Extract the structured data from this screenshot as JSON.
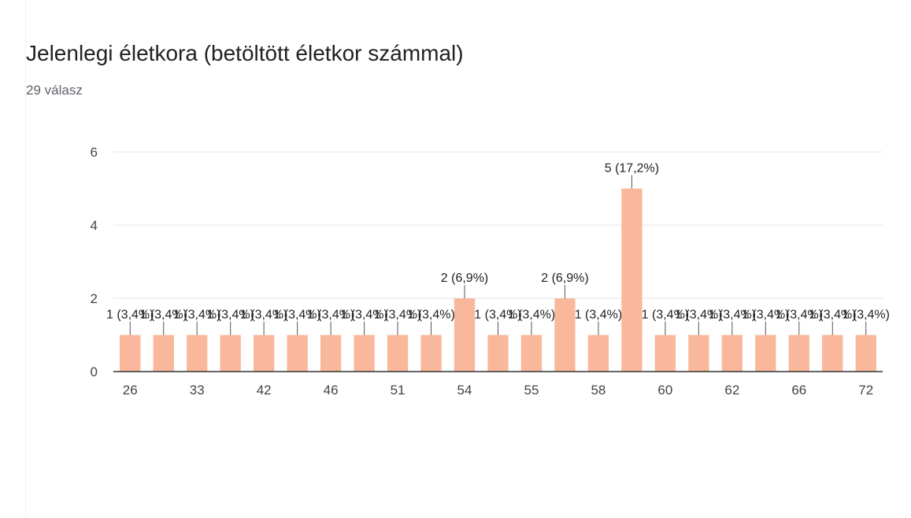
{
  "header": {
    "title": "Jelenlegi életkora (betöltött életkor számmal)",
    "response_count": "29 válasz"
  },
  "colors": {
    "bar": "#f9b89b",
    "grid": "#e6e6e6",
    "axis": "#333333",
    "leader": "#555555"
  },
  "chart_data": {
    "type": "bar",
    "title": "Jelenlegi életkora (betöltött életkor számmal)",
    "xlabel": "",
    "ylabel": "",
    "ylim": [
      0,
      6
    ],
    "yticks": [
      "0",
      "2",
      "4",
      "6"
    ],
    "categories": [
      "26",
      "",
      "33",
      "",
      "42",
      "",
      "46",
      "",
      "51",
      "",
      "54",
      "",
      "55",
      "",
      "58",
      "",
      "60",
      "",
      "62",
      "",
      "66",
      "",
      "72"
    ],
    "values": [
      1,
      1,
      1,
      1,
      1,
      1,
      1,
      1,
      1,
      1,
      2,
      1,
      1,
      2,
      1,
      5,
      1,
      1,
      1,
      1,
      1,
      1,
      1
    ],
    "data_labels": [
      "1 (3,4%)",
      "1 (3,4%)",
      "1 (3,4%)",
      "1 (3,4%)",
      "1 (3,4%)",
      "1 (3,4%)",
      "1 (3,4%)",
      "1 (3,4%)",
      "1 (3,4%)",
      "1 (3,4%)",
      "2 (6,9%)",
      "1 (3,4%)",
      "1 (3,4%)",
      "2 (6,9%)",
      "1 (3,4%)",
      "5 (17,2%)",
      "1 (3,4%)",
      "1 (3,4%)",
      "1 (3,4%)",
      "1 (3,4%)",
      "1 (3,4%)",
      "1 (3,4%)",
      "1 (3,4%)"
    ],
    "grid": true,
    "legend": "none"
  }
}
